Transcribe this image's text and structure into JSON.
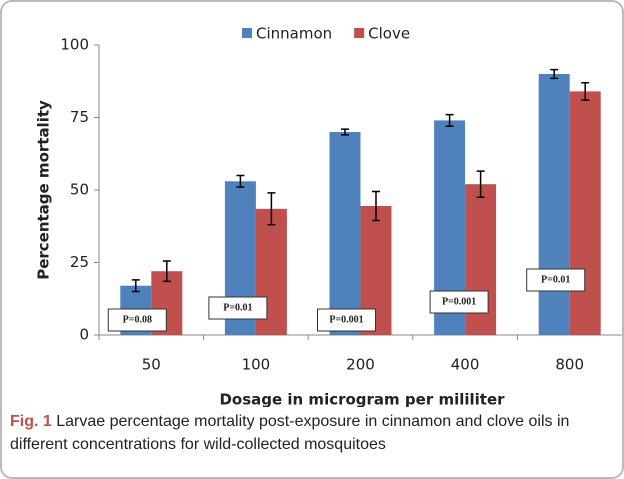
{
  "chart_data": {
    "type": "bar",
    "xlabel": "Dosage in microgram per mililiter",
    "ylabel": "Percentage mortality",
    "categories": [
      "50",
      "100",
      "200",
      "400",
      "800"
    ],
    "series": [
      {
        "name": "Cinnamon",
        "color": "#4f81bd",
        "values": [
          17,
          53,
          70,
          74,
          90
        ],
        "errors": [
          2,
          2,
          1,
          2,
          1.5
        ]
      },
      {
        "name": "Clove",
        "color": "#c0504d",
        "values": [
          22,
          43.5,
          44.5,
          52,
          84
        ],
        "errors": [
          3.5,
          5.5,
          5,
          4.5,
          3
        ]
      }
    ],
    "annotations": [
      "P=0.08",
      "P=0.01",
      "P=0.001",
      "P=0.001",
      "P=0.01"
    ],
    "ylim": [
      0,
      100
    ],
    "yticks": [
      0,
      25,
      50,
      75,
      100
    ],
    "grid": false,
    "legend": "top"
  },
  "caption_label": "Fig. 1",
  "caption": "Larvae percentage mortality post-exposure in cinnamon and clove oils in different concentrations for wild-collected mosquitoes"
}
